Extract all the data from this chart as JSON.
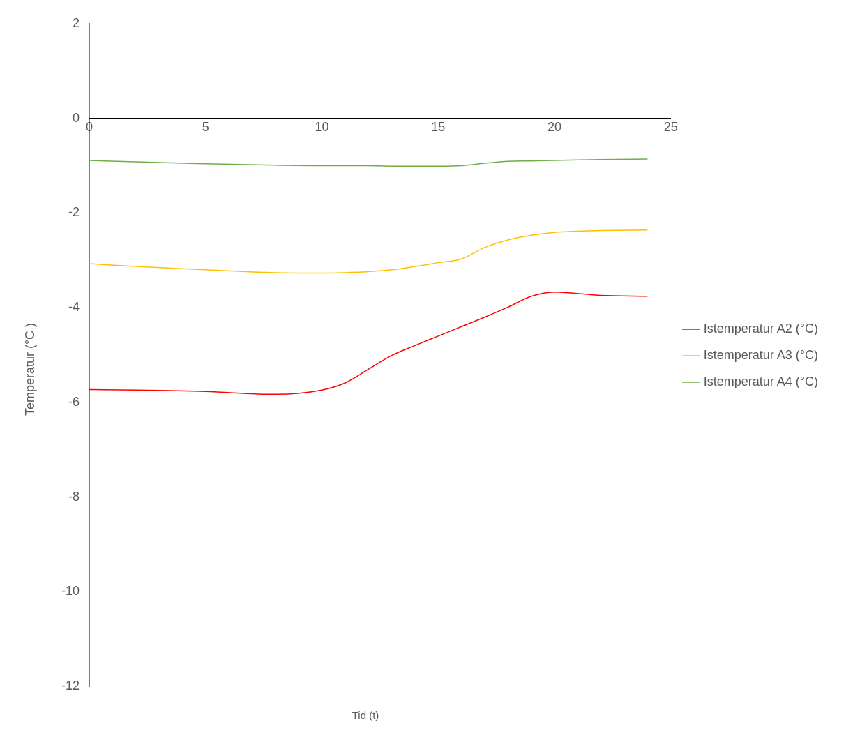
{
  "chart_data": {
    "type": "line",
    "xlabel": "Tid (t)",
    "ylabel": "Temperatur  (°C )",
    "x": [
      0,
      2,
      5,
      8,
      10,
      11,
      12,
      13,
      14,
      15,
      16,
      17,
      18,
      19,
      20,
      22,
      24
    ],
    "series": [
      {
        "name": "Istemperatur A2 (°C)",
        "color": "#ff0000",
        "values": [
          -5.73,
          -5.74,
          -5.77,
          -5.83,
          -5.74,
          -5.59,
          -5.3,
          -5.01,
          -4.8,
          -4.6,
          -4.4,
          -4.2,
          -3.99,
          -3.76,
          -3.67,
          -3.74,
          -3.76
        ]
      },
      {
        "name": "Istemperatur A3 (°C)",
        "color": "#ffc000",
        "values": [
          -3.07,
          -3.13,
          -3.2,
          -3.26,
          -3.27,
          -3.26,
          -3.24,
          -3.2,
          -3.13,
          -3.05,
          -2.97,
          -2.73,
          -2.57,
          -2.47,
          -2.41,
          -2.37,
          -2.36
        ]
      },
      {
        "name": "Istemperatur A4 (°C)",
        "color": "#70ad47",
        "values": [
          -0.89,
          -0.92,
          -0.96,
          -0.99,
          -1.0,
          -1.0,
          -1.0,
          -1.01,
          -1.01,
          -1.01,
          -1.0,
          -0.95,
          -0.91,
          -0.9,
          -0.89,
          -0.87,
          -0.86
        ]
      }
    ],
    "xlim": [
      0,
      25
    ],
    "xticks": [
      0,
      5,
      10,
      15,
      20,
      25
    ],
    "ylim": [
      -12,
      2
    ],
    "yticks": [
      -12,
      -10,
      -8,
      -6,
      -4,
      -2,
      0,
      2
    ],
    "grid": false,
    "legend": "right",
    "marker": "none",
    "line_style": "solid"
  }
}
